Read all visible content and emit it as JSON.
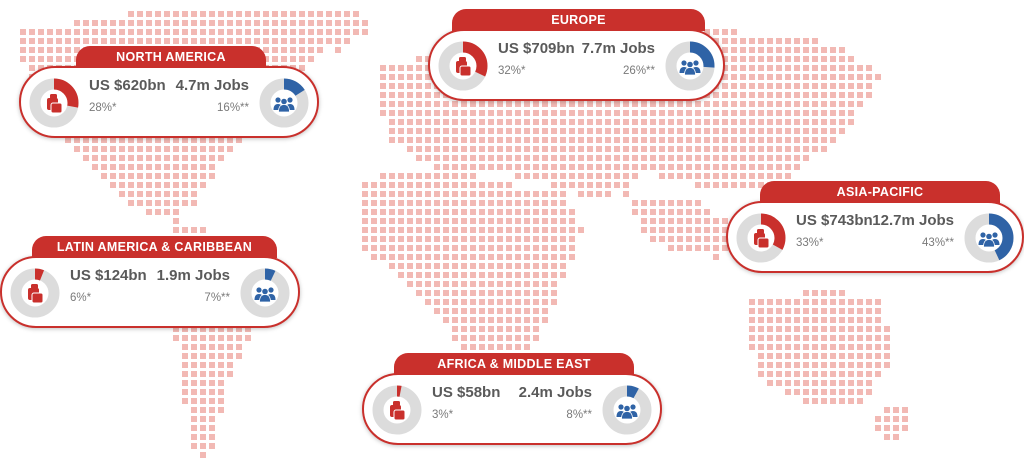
{
  "colors": {
    "red": "#c9302c",
    "blue": "#2f63a6",
    "ring_bg": "#dcdcdc",
    "map_dot": "#f2b9b4"
  },
  "icons": {
    "money": "coin-stack-icon",
    "jobs": "people-group-icon"
  },
  "regions": [
    {
      "id": "north-america",
      "name": "NORTH AMERICA",
      "gdp": "US $620bn",
      "gdp_share": "28%*",
      "gdp_pct": 28,
      "jobs": "4.7m Jobs",
      "jobs_share": "16%**",
      "jobs_pct": 16
    },
    {
      "id": "europe",
      "name": "EUROPE",
      "gdp": "US $709bn",
      "gdp_share": "32%*",
      "gdp_pct": 32,
      "jobs": "7.7m Jobs",
      "jobs_share": "26%**",
      "jobs_pct": 26
    },
    {
      "id": "asia-pacific",
      "name": "ASIA-PACIFIC",
      "gdp": "US $743bn",
      "gdp_share": "33%*",
      "gdp_pct": 33,
      "jobs": "12.7m Jobs",
      "jobs_share": "43%**",
      "jobs_pct": 43
    },
    {
      "id": "latin-america",
      "name": "LATIN AMERICA & CARIBBEAN",
      "gdp": "US $124bn",
      "gdp_share": "6%*",
      "gdp_pct": 6,
      "jobs": "1.9m Jobs",
      "jobs_share": "7%**",
      "jobs_pct": 7
    },
    {
      "id": "africa-middle-east",
      "name": "AFRICA & MIDDLE EAST",
      "gdp": "US $58bn",
      "gdp_share": "3%*",
      "gdp_pct": 3,
      "jobs": "2.4m Jobs",
      "jobs_share": "8%**",
      "jobs_pct": 8
    }
  ]
}
